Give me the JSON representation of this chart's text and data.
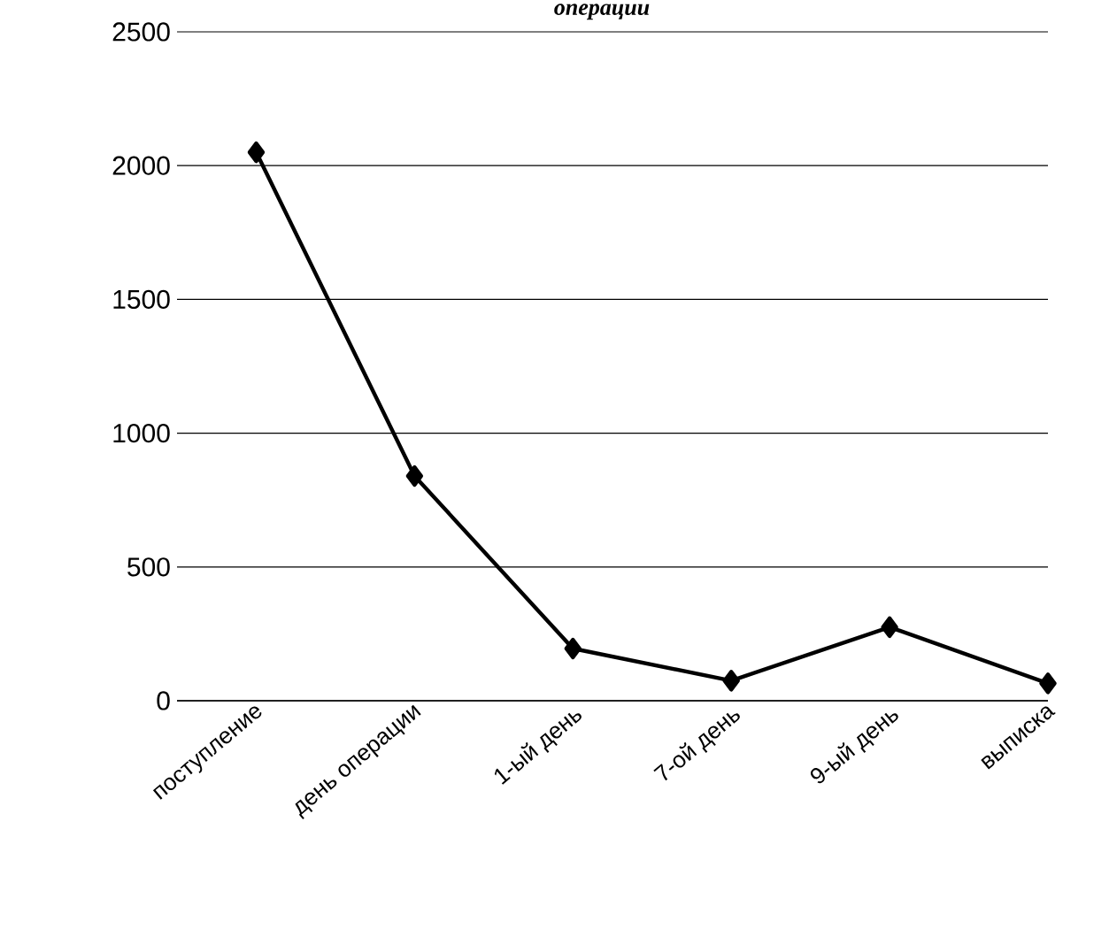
{
  "chart_data": {
    "type": "line",
    "title": "операции",
    "categories": [
      "поступление",
      "день операции",
      "1-ый день",
      "7-ой день",
      "9-ый день",
      "выписка"
    ],
    "series": [
      {
        "color": "#000000",
        "values": [
          2050,
          840,
          195,
          75,
          275,
          65
        ]
      }
    ],
    "ylim": [
      0,
      2500
    ],
    "yticks": [
      0,
      500,
      1000,
      1500,
      2000,
      2500
    ],
    "grid": "y",
    "marker": "diamond",
    "line_style": "solid"
  }
}
